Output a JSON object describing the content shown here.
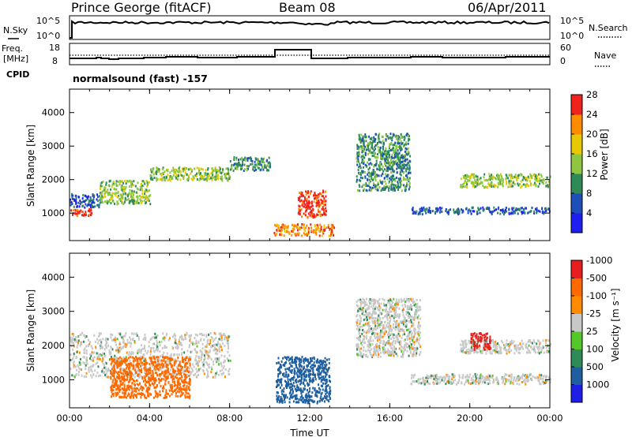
{
  "header": {
    "station": "Prince George (fitACF)",
    "beam": "Beam 08",
    "date": "06/Apr/2011"
  },
  "top_panels": {
    "nsky_label": "N.Sky",
    "nsky_ticks": [
      "10^5",
      "10^0"
    ],
    "nsearch_ticks": [
      "10^5",
      "10^0"
    ],
    "nsearch_label": "N.Search",
    "freq_label": "Freq.",
    "freq_unit": "[MHz]",
    "freq_ticks": [
      "18",
      "8"
    ],
    "nave_ticks": [
      "60",
      "0"
    ],
    "nave_label": "Nave",
    "cpid_label": "CPID",
    "cpid_text": "normalsound (fast) -157"
  },
  "chart_data": [
    {
      "type": "heatmap",
      "panel": "power",
      "xlabel": "",
      "ylabel": "Slant Range [km]",
      "x_ticks": [
        "00:00",
        "04:00",
        "08:00",
        "12:00",
        "16:00",
        "20:00",
        "00:00"
      ],
      "y_ticks": [
        "1000",
        "2000",
        "3000",
        "4000"
      ],
      "xlim": [
        0,
        24
      ],
      "ylim": [
        180,
        4700
      ],
      "colorbar": {
        "label": "Power [dB]",
        "ticks": [
          "4",
          "8",
          "12",
          "16",
          "20",
          "24",
          "28"
        ],
        "colors": [
          "#1e1ef0",
          "#1e4fb8",
          "#2e8b57",
          "#8ec641",
          "#e8c800",
          "#ff8c00",
          "#f0231c"
        ]
      },
      "regions": [
        {
          "t": [
            0.0,
            1.5
          ],
          "r": [
            1200,
            1600
          ],
          "level": 8
        },
        {
          "t": [
            0.0,
            1.2
          ],
          "r": [
            950,
            1150
          ],
          "level": 26
        },
        {
          "t": [
            1.5,
            4.0
          ],
          "r": [
            1300,
            2000
          ],
          "level": 14
        },
        {
          "t": [
            4.0,
            8.0
          ],
          "r": [
            2000,
            2400
          ],
          "level": 16
        },
        {
          "t": [
            8.0,
            10.0
          ],
          "r": [
            2300,
            2700
          ],
          "level": 10
        },
        {
          "t": [
            10.2,
            13.2
          ],
          "r": [
            350,
            700
          ],
          "level": 24
        },
        {
          "t": [
            11.4,
            12.8
          ],
          "r": [
            900,
            1700
          ],
          "level": 28
        },
        {
          "t": [
            14.3,
            17.0
          ],
          "r": [
            1700,
            3400
          ],
          "level": 12
        },
        {
          "t": [
            17.0,
            24.0
          ],
          "r": [
            1000,
            1200
          ],
          "level": 6
        },
        {
          "t": [
            19.5,
            24.0
          ],
          "r": [
            1800,
            2200
          ],
          "level": 14
        }
      ]
    },
    {
      "type": "heatmap",
      "panel": "velocity",
      "xlabel": "Time UT",
      "ylabel": "Slant Range [km]",
      "x_ticks": [
        "00:00",
        "04:00",
        "08:00",
        "12:00",
        "16:00",
        "20:00",
        "00:00"
      ],
      "y_ticks": [
        "1000",
        "2000",
        "3000",
        "4000"
      ],
      "xlim": [
        0,
        24
      ],
      "ylim": [
        180,
        4700
      ],
      "colorbar": {
        "label": "Velocity [m s⁻¹]",
        "ticks": [
          "1000",
          "500",
          "100",
          "25",
          "-25",
          "-100",
          "-500",
          "-1000"
        ],
        "colors": [
          "#1e1ee6",
          "#1f5fa0",
          "#2e8b57",
          "#55c829",
          "#c8c8c8",
          "#ff8c00",
          "#ff6a00",
          "#e81e1e"
        ]
      },
      "regions": [
        {
          "t": [
            0.0,
            8.0
          ],
          "r": [
            1100,
            2400
          ],
          "v": 0
        },
        {
          "t": [
            2.0,
            6.0
          ],
          "r": [
            500,
            1700
          ],
          "v": -300
        },
        {
          "t": [
            10.3,
            13.0
          ],
          "r": [
            350,
            1700
          ],
          "v": 200
        },
        {
          "t": [
            14.3,
            17.5
          ],
          "r": [
            1700,
            3400
          ],
          "v": 0
        },
        {
          "t": [
            17.0,
            24.0
          ],
          "r": [
            900,
            1200
          ],
          "v": 0
        },
        {
          "t": [
            19.5,
            24.0
          ],
          "r": [
            1800,
            2200
          ],
          "v": 0
        },
        {
          "t": [
            20.0,
            21.0
          ],
          "r": [
            1900,
            2400
          ],
          "v": -600
        }
      ]
    }
  ]
}
